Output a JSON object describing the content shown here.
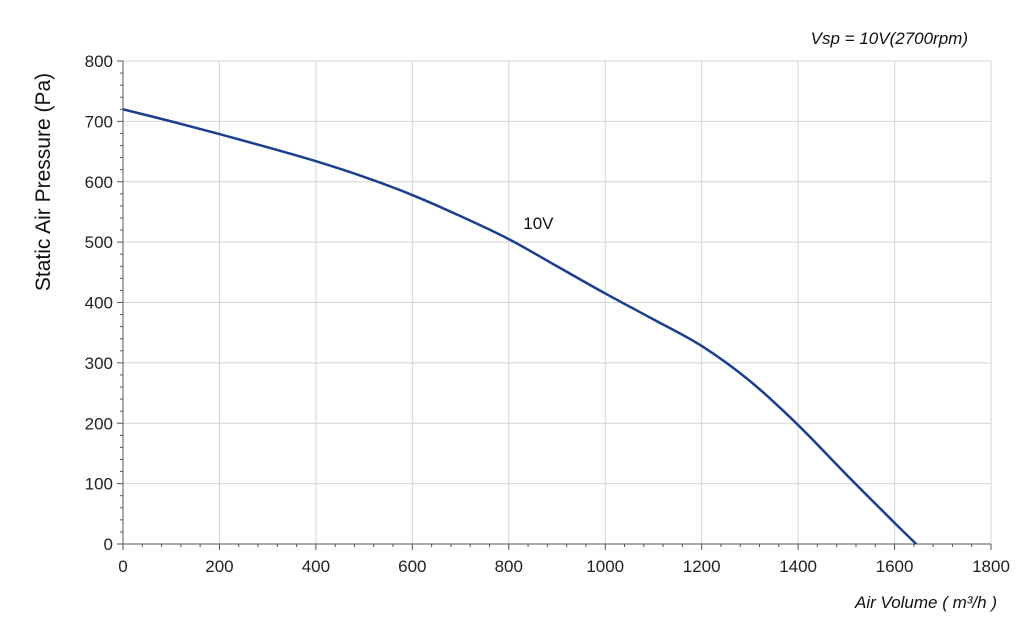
{
  "chart_data": {
    "type": "line",
    "title": "",
    "subtitle": "Vsp = 10V(2700rpm)",
    "xlabel": "Air Volume ( m³/h )",
    "ylabel": "Static Air Pressure  (Pa)",
    "xlim": [
      0,
      1800
    ],
    "ylim": [
      0,
      800
    ],
    "x_ticks": [
      0,
      200,
      400,
      600,
      800,
      1000,
      1200,
      1400,
      1600,
      1800
    ],
    "y_ticks": [
      0,
      100,
      200,
      300,
      400,
      500,
      600,
      700,
      800
    ],
    "grid": true,
    "colors": {
      "line": "#1a3f8f",
      "grid": "#d4d4d4",
      "axis": "#555555"
    },
    "series": [
      {
        "name": "10V",
        "x": [
          0,
          100,
          200,
          300,
          400,
          500,
          600,
          700,
          800,
          900,
          1000,
          1100,
          1200,
          1300,
          1400,
          1500,
          1600,
          1645
        ],
        "y": [
          720,
          700,
          679,
          657,
          634,
          608,
          578,
          543,
          505,
          460,
          415,
          372,
          328,
          270,
          197,
          115,
          35,
          0
        ]
      }
    ],
    "annotations": [
      {
        "text": "10V",
        "x": 830,
        "y": 522
      }
    ]
  }
}
